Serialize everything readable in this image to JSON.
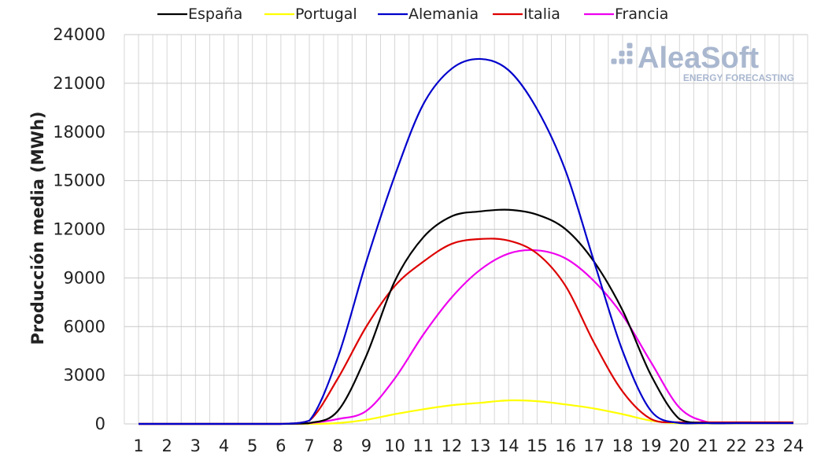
{
  "chart_data": {
    "type": "line",
    "title": "",
    "xlabel": "",
    "ylabel": "Producción media (MWh)",
    "x": [
      1,
      2,
      3,
      4,
      5,
      6,
      7,
      8,
      9,
      10,
      11,
      12,
      13,
      14,
      15,
      16,
      17,
      18,
      19,
      20,
      21,
      22,
      23,
      24
    ],
    "x_tick_labels": [
      "1",
      "2",
      "3",
      "4",
      "5",
      "6",
      "7",
      "8",
      "9",
      "10",
      "11",
      "12",
      "13",
      "14",
      "15",
      "16",
      "17",
      "18",
      "19",
      "20",
      "21",
      "22",
      "23",
      "24"
    ],
    "y_ticks": [
      0,
      3000,
      6000,
      9000,
      12000,
      15000,
      18000,
      21000,
      24000
    ],
    "y_tick_labels": [
      "0",
      "3000",
      "6000",
      "9000",
      "12000",
      "15000",
      "18000",
      "21000",
      "24000"
    ],
    "ylim": [
      0,
      24000
    ],
    "grid": true,
    "legend_position": "top",
    "series": [
      {
        "name": "España",
        "color": "#000000",
        "values": [
          0,
          0,
          0,
          0,
          0,
          0,
          50,
          800,
          4200,
          8800,
          11500,
          12800,
          13100,
          13200,
          12900,
          12000,
          10000,
          7000,
          3000,
          300,
          50,
          50,
          50,
          50
        ]
      },
      {
        "name": "Portugal",
        "color": "#ffff00",
        "values": [
          0,
          0,
          0,
          0,
          0,
          0,
          0,
          50,
          250,
          600,
          900,
          1150,
          1300,
          1450,
          1400,
          1200,
          950,
          600,
          200,
          30,
          30,
          30,
          30,
          30
        ]
      },
      {
        "name": "Alemania",
        "color": "#0000cc",
        "values": [
          0,
          0,
          0,
          0,
          0,
          0,
          200,
          4100,
          10000,
          15300,
          19700,
          21900,
          22500,
          21800,
          19400,
          15600,
          10000,
          4500,
          800,
          50,
          50,
          50,
          50,
          50
        ]
      },
      {
        "name": "Italia",
        "color": "#dd0000",
        "values": [
          0,
          0,
          0,
          0,
          0,
          0,
          200,
          2800,
          6000,
          8500,
          10000,
          11100,
          11400,
          11300,
          10500,
          8500,
          5000,
          2000,
          300,
          100,
          100,
          100,
          100,
          100
        ]
      },
      {
        "name": "Francia",
        "color": "#ee00ee",
        "values": [
          0,
          0,
          0,
          0,
          0,
          0,
          50,
          300,
          800,
          2800,
          5500,
          7800,
          9500,
          10500,
          10700,
          10200,
          8800,
          6700,
          3800,
          1000,
          100,
          50,
          50,
          50
        ]
      }
    ]
  },
  "watermark": {
    "main": "AleaSoft",
    "sub": "ENERGY FORECASTING"
  }
}
